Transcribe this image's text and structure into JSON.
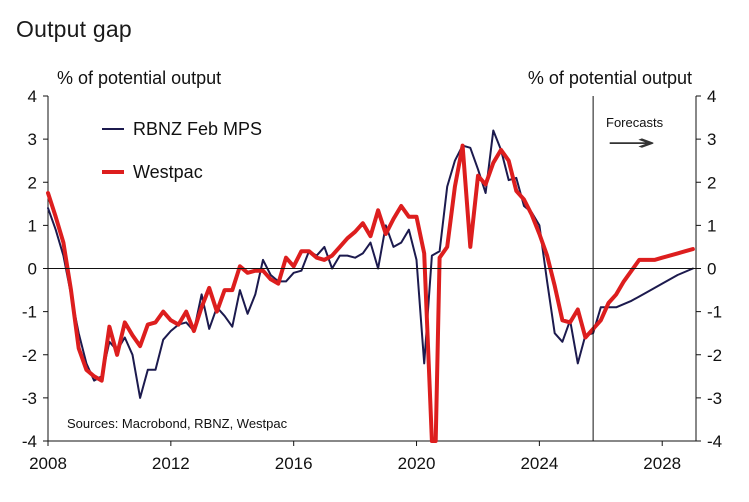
{
  "title": "Output gap",
  "chart_data": {
    "type": "line",
    "title": "Output gap",
    "ylabel_left": "% of potential output",
    "ylabel_right": "% of potential output",
    "ylim": [
      -4,
      4
    ],
    "yticks": [
      4,
      3,
      2,
      1,
      0,
      -1,
      -2,
      -3,
      -4
    ],
    "yticks_labels": [
      "4",
      "3",
      "2",
      "1",
      "0",
      "-1",
      "-2",
      "-3",
      "-4"
    ],
    "xlim": [
      2008,
      2029.1
    ],
    "xticks": [
      2008,
      2012,
      2016,
      2020,
      2024,
      2028
    ],
    "xticks_labels": [
      "2008",
      "2012",
      "2016",
      "2020",
      "2024",
      "2028"
    ],
    "forecast_start": 2025.75,
    "forecast_label": "Forecasts",
    "forecast_arrow": "→",
    "source": "Sources: Macrobond, RBNZ, Westpac",
    "series": [
      {
        "name": "RBNZ Feb MPS",
        "color": "#1c1a4e",
        "width": 2,
        "points": [
          [
            2008.0,
            1.4
          ],
          [
            2008.25,
            0.9
          ],
          [
            2008.5,
            0.3
          ],
          [
            2008.75,
            -0.6
          ],
          [
            2009.0,
            -1.5
          ],
          [
            2009.25,
            -2.2
          ],
          [
            2009.5,
            -2.6
          ],
          [
            2009.75,
            -2.5
          ],
          [
            2010.0,
            -1.7
          ],
          [
            2010.25,
            -1.9
          ],
          [
            2010.5,
            -1.6
          ],
          [
            2010.75,
            -2.0
          ],
          [
            2011.0,
            -3.0
          ],
          [
            2011.25,
            -2.35
          ],
          [
            2011.5,
            -2.35
          ],
          [
            2011.75,
            -1.65
          ],
          [
            2012.0,
            -1.45
          ],
          [
            2012.25,
            -1.3
          ],
          [
            2012.5,
            -1.25
          ],
          [
            2012.75,
            -1.45
          ],
          [
            2013.0,
            -0.6
          ],
          [
            2013.25,
            -1.4
          ],
          [
            2013.5,
            -0.9
          ],
          [
            2013.75,
            -1.1
          ],
          [
            2014.0,
            -1.35
          ],
          [
            2014.25,
            -0.5
          ],
          [
            2014.5,
            -1.05
          ],
          [
            2014.75,
            -0.6
          ],
          [
            2015.0,
            0.2
          ],
          [
            2015.25,
            -0.15
          ],
          [
            2015.5,
            -0.3
          ],
          [
            2015.75,
            -0.3
          ],
          [
            2016.0,
            -0.1
          ],
          [
            2016.25,
            -0.05
          ],
          [
            2016.5,
            0.4
          ],
          [
            2016.75,
            0.3
          ],
          [
            2017.0,
            0.5
          ],
          [
            2017.25,
            0.0
          ],
          [
            2017.5,
            0.3
          ],
          [
            2017.75,
            0.3
          ],
          [
            2018.0,
            0.25
          ],
          [
            2018.25,
            0.35
          ],
          [
            2018.5,
            0.6
          ],
          [
            2018.75,
            0.0
          ],
          [
            2019.0,
            1.0
          ],
          [
            2019.25,
            0.5
          ],
          [
            2019.5,
            0.6
          ],
          [
            2019.75,
            0.9
          ],
          [
            2020.0,
            0.2
          ],
          [
            2020.25,
            -2.2
          ],
          [
            2020.5,
            0.3
          ],
          [
            2020.75,
            0.4
          ],
          [
            2021.0,
            1.9
          ],
          [
            2021.25,
            2.5
          ],
          [
            2021.5,
            2.85
          ],
          [
            2021.75,
            2.8
          ],
          [
            2022.0,
            2.3
          ],
          [
            2022.25,
            1.75
          ],
          [
            2022.5,
            3.2
          ],
          [
            2022.75,
            2.75
          ],
          [
            2023.0,
            2.05
          ],
          [
            2023.25,
            2.1
          ],
          [
            2023.5,
            1.45
          ],
          [
            2023.75,
            1.3
          ],
          [
            2024.0,
            1.0
          ],
          [
            2024.25,
            -0.3
          ],
          [
            2024.5,
            -1.5
          ],
          [
            2024.75,
            -1.7
          ],
          [
            2025.0,
            -1.2
          ],
          [
            2025.25,
            -2.2
          ],
          [
            2025.5,
            -1.55
          ],
          [
            2025.75,
            -1.5
          ],
          [
            2026.0,
            -0.9
          ],
          [
            2026.5,
            -0.9
          ],
          [
            2027.0,
            -0.75
          ],
          [
            2027.5,
            -0.55
          ],
          [
            2028.0,
            -0.35
          ],
          [
            2028.5,
            -0.15
          ],
          [
            2029.0,
            0.0
          ]
        ]
      },
      {
        "name": "Westpac",
        "color": "#dd1e1e",
        "width": 4,
        "points": [
          [
            2008.0,
            1.75
          ],
          [
            2008.25,
            1.2
          ],
          [
            2008.5,
            0.6
          ],
          [
            2008.75,
            -0.5
          ],
          [
            2009.0,
            -1.85
          ],
          [
            2009.25,
            -2.35
          ],
          [
            2009.5,
            -2.5
          ],
          [
            2009.75,
            -2.6
          ],
          [
            2010.0,
            -1.35
          ],
          [
            2010.25,
            -2.0
          ],
          [
            2010.5,
            -1.25
          ],
          [
            2010.75,
            -1.55
          ],
          [
            2011.0,
            -1.8
          ],
          [
            2011.25,
            -1.3
          ],
          [
            2011.5,
            -1.25
          ],
          [
            2011.75,
            -1.0
          ],
          [
            2012.0,
            -1.2
          ],
          [
            2012.25,
            -1.3
          ],
          [
            2012.5,
            -1.0
          ],
          [
            2012.75,
            -1.45
          ],
          [
            2013.0,
            -0.9
          ],
          [
            2013.25,
            -0.45
          ],
          [
            2013.5,
            -1.0
          ],
          [
            2013.75,
            -0.5
          ],
          [
            2014.0,
            -0.5
          ],
          [
            2014.25,
            0.05
          ],
          [
            2014.5,
            -0.1
          ],
          [
            2014.75,
            -0.05
          ],
          [
            2015.0,
            -0.05
          ],
          [
            2015.25,
            -0.25
          ],
          [
            2015.5,
            -0.35
          ],
          [
            2015.75,
            0.25
          ],
          [
            2016.0,
            0.05
          ],
          [
            2016.25,
            0.4
          ],
          [
            2016.5,
            0.4
          ],
          [
            2016.75,
            0.25
          ],
          [
            2017.0,
            0.2
          ],
          [
            2017.25,
            0.3
          ],
          [
            2017.5,
            0.5
          ],
          [
            2017.75,
            0.7
          ],
          [
            2018.0,
            0.85
          ],
          [
            2018.25,
            1.05
          ],
          [
            2018.5,
            0.75
          ],
          [
            2018.75,
            1.35
          ],
          [
            2019.0,
            0.8
          ],
          [
            2019.25,
            1.15
          ],
          [
            2019.5,
            1.45
          ],
          [
            2019.75,
            1.2
          ],
          [
            2020.0,
            1.2
          ],
          [
            2020.25,
            0.35
          ],
          [
            2020.5,
            -4.0
          ],
          [
            2020.625,
            -4.0
          ],
          [
            2020.75,
            0.25
          ],
          [
            2021.0,
            0.5
          ],
          [
            2021.25,
            1.9
          ],
          [
            2021.5,
            2.85
          ],
          [
            2021.75,
            0.5
          ],
          [
            2022.0,
            2.15
          ],
          [
            2022.25,
            1.95
          ],
          [
            2022.5,
            2.45
          ],
          [
            2022.75,
            2.75
          ],
          [
            2023.0,
            2.5
          ],
          [
            2023.25,
            1.8
          ],
          [
            2023.5,
            1.6
          ],
          [
            2023.75,
            1.25
          ],
          [
            2024.0,
            0.8
          ],
          [
            2024.25,
            0.3
          ],
          [
            2024.5,
            -0.4
          ],
          [
            2024.75,
            -1.2
          ],
          [
            2025.0,
            -1.25
          ],
          [
            2025.25,
            -0.95
          ],
          [
            2025.5,
            -1.6
          ],
          [
            2025.75,
            -1.4
          ],
          [
            2026.0,
            -1.2
          ],
          [
            2026.25,
            -0.8
          ],
          [
            2026.5,
            -0.6
          ],
          [
            2026.75,
            -0.3
          ],
          [
            2027.0,
            -0.05
          ],
          [
            2027.25,
            0.2
          ],
          [
            2027.5,
            0.2
          ],
          [
            2027.75,
            0.2
          ],
          [
            2028.0,
            0.25
          ],
          [
            2028.25,
            0.3
          ],
          [
            2028.5,
            0.35
          ],
          [
            2028.75,
            0.4
          ],
          [
            2029.0,
            0.45
          ]
        ]
      }
    ]
  }
}
